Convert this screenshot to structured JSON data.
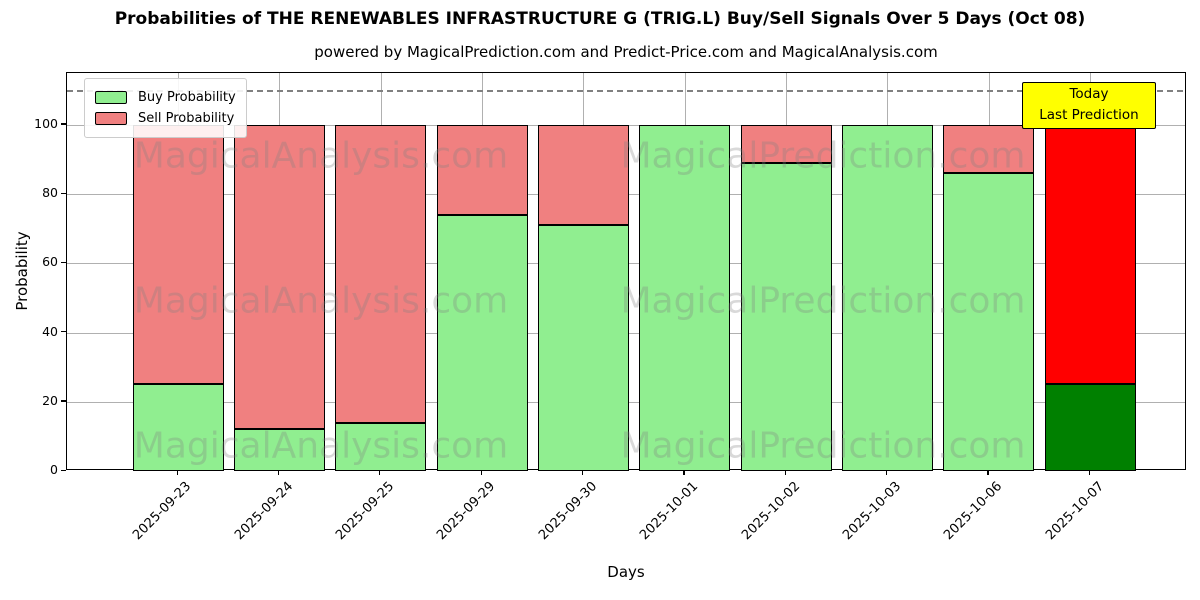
{
  "title": "Probabilities of THE RENEWABLES INFRASTRUCTURE G (TRIG.L) Buy/Sell Signals Over 5 Days (Oct 08)",
  "subtitle": "powered by MagicalPrediction.com and Predict-Price.com and MagicalAnalysis.com",
  "axes": {
    "xlabel": "Days",
    "ylabel": "Probability",
    "yticks": [
      0,
      20,
      40,
      60,
      80,
      100
    ],
    "ylim": [
      0,
      115
    ],
    "threshold_line_y": 110,
    "grid_color": "#b0b0b0",
    "threshold_color": "#808080"
  },
  "legend": {
    "items": [
      {
        "label": "Buy Probability",
        "color": "#90EE90"
      },
      {
        "label": "Sell Probability",
        "color": "#F08080"
      }
    ]
  },
  "annotation": {
    "line1": "Today",
    "line2": "Last Prediction",
    "bg_color": "#FFFF00",
    "border_color": "#000000"
  },
  "watermarks": {
    "color": "rgba(128,128,128,0.30)",
    "texts": [
      "MagicalAnalysis.com",
      "MagicalPrediction.com"
    ]
  },
  "chart_data": {
    "type": "bar",
    "stacked": true,
    "title": "Probabilities of THE RENEWABLES INFRASTRUCTURE G (TRIG.L) Buy/Sell Signals Over 5 Days (Oct 08)",
    "xlabel": "Days",
    "ylabel": "Probability",
    "ylim": [
      0,
      115
    ],
    "grid": true,
    "legend_position": "upper left",
    "categories": [
      "2025-09-23",
      "2025-09-24",
      "2025-09-25",
      "2025-09-29",
      "2025-09-30",
      "2025-10-01",
      "2025-10-02",
      "2025-10-03",
      "2025-10-06",
      "2025-10-07"
    ],
    "series": [
      {
        "name": "Buy Probability",
        "color": "#90EE90",
        "today_color": "#008000",
        "values": [
          25,
          12,
          14,
          74,
          71,
          100,
          89,
          100,
          86,
          25
        ]
      },
      {
        "name": "Sell Probability",
        "color": "#F08080",
        "today_color": "#FF0000",
        "values": [
          75,
          88,
          86,
          26,
          29,
          0,
          11,
          0,
          14,
          75
        ]
      }
    ],
    "bar_edge_color": "#000000",
    "today_index": 9
  }
}
